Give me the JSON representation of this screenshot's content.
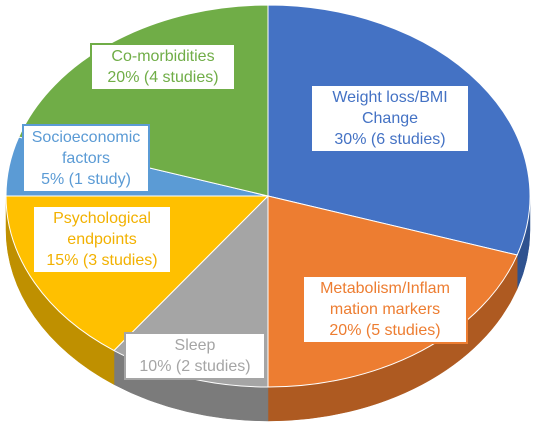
{
  "chart_data": {
    "type": "pie",
    "style": "3d-exploded-tilted",
    "slices": [
      {
        "key": "weight",
        "label_lines": [
          "Weight loss/BMI",
          "Change",
          "30% (6 studies)"
        ],
        "value": 30,
        "color": "#4472C4",
        "dark": "#2f528f",
        "text_color": "#ffffff"
      },
      {
        "key": "metabolism",
        "label_lines": [
          "Metabolism/Inflam",
          "mation markers",
          "20% (5 studies)"
        ],
        "value": 20,
        "color": "#ED7D31",
        "dark": "#ae5a21",
        "text_color": "#ffffff"
      },
      {
        "key": "sleep",
        "label_lines": [
          "Sleep",
          "10% (2 studies)"
        ],
        "value": 10,
        "color": "#A5A5A5",
        "dark": "#7b7b7b",
        "text_color": "#ffffff"
      },
      {
        "key": "psychological",
        "label_lines": [
          "Psychological",
          "endpoints",
          "15% (3 studies)"
        ],
        "value": 15,
        "color": "#FFC000",
        "dark": "#bf9000",
        "text_color": "#ffffff"
      },
      {
        "key": "socioeconomic",
        "label_lines": [
          "Socioeconomic",
          "factors",
          "5% (1 study)"
        ],
        "value": 5,
        "color": "#5B9BD5",
        "dark": "#41719c",
        "text_color": "#ffffff"
      },
      {
        "key": "comorbidities",
        "label_lines": [
          "Co-morbidities",
          "20% (4 studies)"
        ],
        "value": 20,
        "color": "#70AD47",
        "dark": "#507e32",
        "text_color": "#ffffff"
      }
    ]
  }
}
